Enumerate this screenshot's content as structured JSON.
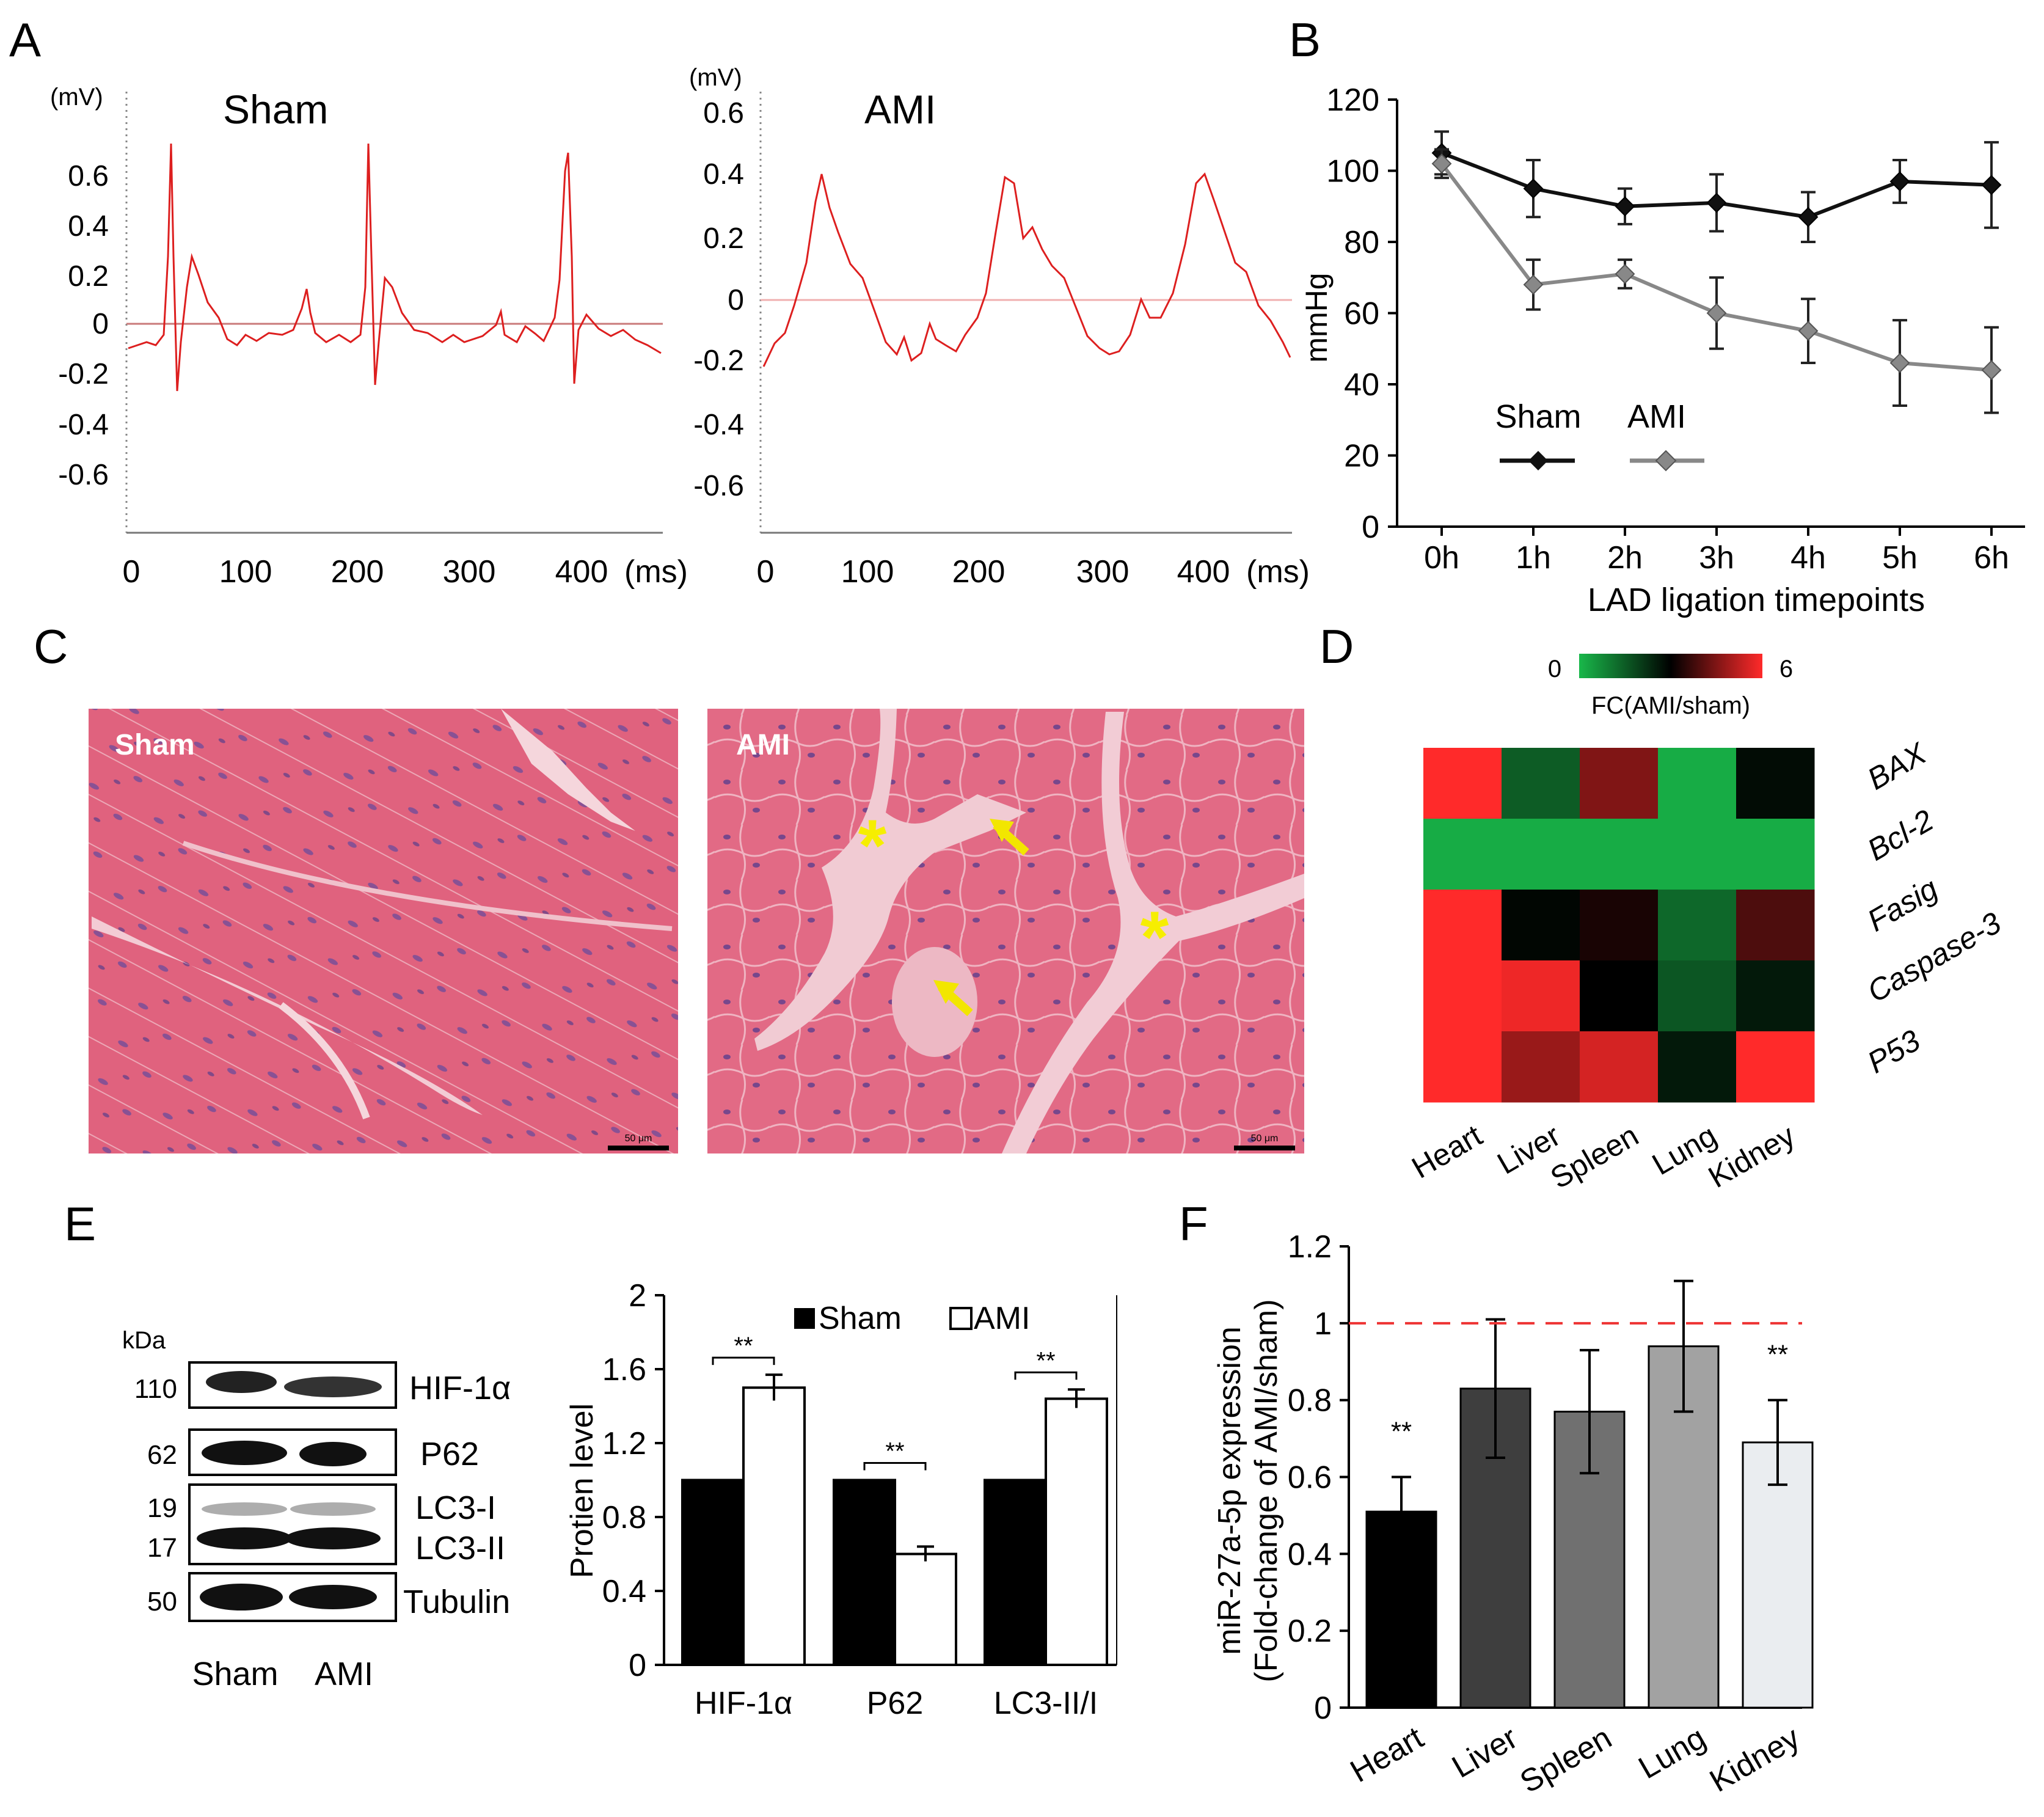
{
  "panels": {
    "a": "A",
    "b": "B",
    "c": "C",
    "d": "D",
    "e": "E",
    "f": "F"
  },
  "ecg": {
    "y_unit": "(mV)",
    "x_unit": "(ms)",
    "sham": {
      "title": "Sham",
      "y_ticks": [
        "0.6",
        "0.4",
        "0.2",
        "0",
        "-0.2",
        "-0.4",
        "-0.6"
      ],
      "x_ticks": [
        "0",
        "100",
        "200",
        "300",
        "400"
      ]
    },
    "ami": {
      "title": "AMI",
      "y_ticks": [
        "0.6",
        "0.4",
        "0.2",
        "0",
        "-0.2",
        "-0.4",
        "-0.6"
      ],
      "x_ticks": [
        "0",
        "100",
        "200",
        "300",
        "400"
      ]
    }
  },
  "histology": {
    "sham_label": "Sham",
    "ami_label": "AMI",
    "scale_bar": "50 μm"
  },
  "western_blot": {
    "kda_label": "kDa",
    "lanes": [
      "Sham",
      "AMI"
    ],
    "bands": [
      {
        "kda": "110",
        "label": "HIF-1α"
      },
      {
        "kda": "62",
        "label": "P62"
      },
      {
        "kda": "19",
        "label": "LC3-I"
      },
      {
        "kda": "17",
        "label": "LC3-II"
      },
      {
        "kda": "50",
        "label": "Tubulin"
      }
    ]
  },
  "chart_data": [
    {
      "id": "B",
      "type": "line",
      "title": "",
      "xlabel": "LAD ligation timepoints",
      "ylabel": "mmHg",
      "categories": [
        "0h",
        "1h",
        "2h",
        "3h",
        "4h",
        "5h",
        "6h"
      ],
      "ylim": [
        0,
        120
      ],
      "yticks": [
        "0",
        "20",
        "40",
        "60",
        "80",
        "100",
        "120"
      ],
      "legend": "bottom-center",
      "series": [
        {
          "name": "Sham",
          "color": "#111111",
          "values": [
            105,
            95,
            90,
            91,
            87,
            97,
            96
          ],
          "errors": [
            6,
            8,
            5,
            8,
            7,
            6,
            12
          ]
        },
        {
          "name": "AMI",
          "color": "#888888",
          "values": [
            102,
            68,
            71,
            60,
            55,
            46,
            44
          ],
          "errors": [
            4,
            7,
            4,
            10,
            9,
            12,
            12
          ]
        }
      ]
    },
    {
      "id": "D",
      "type": "heatmap",
      "colorbar_label": "FC(AMI/sham)",
      "range": [
        0,
        6
      ],
      "range_labels": [
        "0",
        "6"
      ],
      "columns": [
        "Heart",
        "Liver",
        "Spleen",
        "Lung",
        "Kidney"
      ],
      "rows": [
        "BAX",
        "Bcl-2",
        "Fasig",
        "Caspase-3",
        "P53"
      ],
      "values": [
        [
          6,
          1.5,
          4.5,
          0.2,
          2.8
        ],
        [
          0.2,
          0.2,
          0.2,
          0.2,
          0.2
        ],
        [
          6,
          2.9,
          3.3,
          1.3,
          3.9
        ],
        [
          6,
          5.8,
          3.0,
          1.6,
          2.6
        ],
        [
          6,
          4.8,
          5.5,
          2.6,
          6
        ]
      ]
    },
    {
      "id": "E",
      "type": "bar",
      "ylabel": "Protien level",
      "categories": [
        "HIF-1α",
        "P62",
        "LC3-II/I"
      ],
      "ylim": [
        0,
        2
      ],
      "yticks": [
        "0",
        "0.4",
        "0.8",
        "1.2",
        "1.6",
        "2"
      ],
      "legend": "top-center",
      "series": [
        {
          "name": "Sham",
          "color": "#000000",
          "values": [
            1,
            1,
            1
          ],
          "errors": [
            0,
            0,
            0
          ]
        },
        {
          "name": "AMI",
          "color": "#ffffff",
          "values": [
            1.5,
            0.6,
            1.44
          ],
          "errors": [
            0.07,
            0.04,
            0.05
          ]
        }
      ],
      "significance": [
        "**",
        "**",
        "**"
      ]
    },
    {
      "id": "F",
      "type": "bar",
      "ylabel": "miR-27a-5p expression",
      "ylabel2": "(Fold-change of AMI/sham)",
      "categories": [
        "Heart",
        "Liver",
        "Spleen",
        "Lung",
        "Kidney"
      ],
      "values": [
        0.51,
        0.83,
        0.77,
        0.94,
        0.69
      ],
      "errors": [
        0.09,
        0.18,
        0.16,
        0.17,
        0.11
      ],
      "colors": [
        "#000000",
        "#3e3e3e",
        "#707070",
        "#a2a2a2",
        "#eaedf0"
      ],
      "ylim": [
        0,
        1.2
      ],
      "yticks": [
        "0",
        "0.2",
        "0.4",
        "0.6",
        "0.8",
        "1",
        "1.2"
      ],
      "reference_line": 1,
      "significance": [
        "**",
        "",
        "",
        "",
        "**"
      ]
    }
  ]
}
